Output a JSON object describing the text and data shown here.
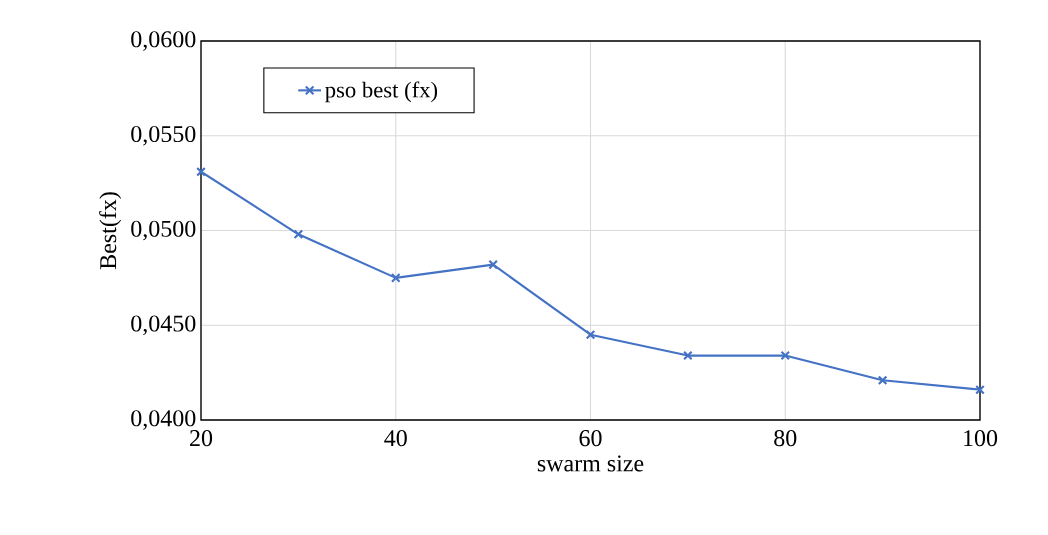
{
  "chart_data": {
    "type": "line",
    "xlabel": "swarm size",
    "ylabel": "Best(fx)",
    "x": [
      20,
      30,
      40,
      50,
      60,
      70,
      80,
      90,
      100
    ],
    "series": [
      {
        "name": "pso best (fx)",
        "color": "#4472c4",
        "values": [
          0.0531,
          0.0498,
          0.0475,
          0.0482,
          0.0445,
          0.0434,
          0.0434,
          0.0421,
          0.0416
        ]
      }
    ],
    "xlim": [
      20,
      100
    ],
    "xticks": [
      20,
      40,
      60,
      80,
      100
    ],
    "ylim": [
      0.04,
      0.06
    ],
    "yticks": [
      {
        "value": 0.04,
        "label": "0,0400"
      },
      {
        "value": 0.045,
        "label": "0,0450"
      },
      {
        "value": 0.05,
        "label": "0,0500"
      },
      {
        "value": 0.055,
        "label": "0,0550"
      },
      {
        "value": 0.06,
        "label": "0,0600"
      }
    ],
    "grid": true,
    "legend": "top left",
    "marker": "cross",
    "line_style": "solid"
  }
}
